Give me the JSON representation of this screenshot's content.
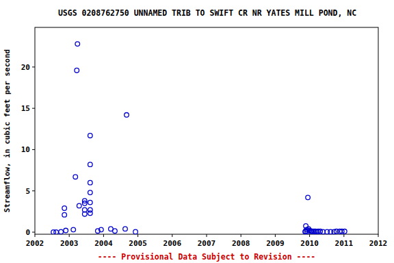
{
  "chart_data": {
    "type": "scatter",
    "title": "USGS 0208762750 UNNAMED TRIB TO SWIFT CR NR YATES MILL POND, NC",
    "y_label": "Streamflow, in cubic feet per second",
    "annotation": "---- Provisional Data Subject to Revision ----",
    "x": [
      2002.54,
      2002.62,
      2002.76,
      2002.86,
      2002.86,
      2002.9,
      2003.12,
      2003.18,
      2003.22,
      2003.24,
      2003.29,
      2003.45,
      2003.45,
      2003.45,
      2003.45,
      2003.61,
      2003.61,
      2003.61,
      2003.61,
      2003.61,
      2003.61,
      2003.61,
      2003.83,
      2003.93,
      2004.21,
      2004.33,
      2004.63,
      2004.67,
      2004.93,
      2009.87,
      2009.88,
      2009.89,
      2009.91,
      2009.93,
      2009.95,
      2009.97,
      2009.99,
      2010.03,
      2010.05,
      2010.09,
      2010.13,
      2010.17,
      2010.21,
      2010.25,
      2010.31,
      2010.39,
      2010.51,
      2010.61,
      2010.71,
      2010.78,
      2010.88,
      2010.94,
      2011.02
    ],
    "values": [
      0,
      0,
      0.05,
      2.9,
      2.1,
      0.2,
      0.3,
      6.7,
      19.6,
      22.8,
      3.2,
      3.8,
      3.5,
      2.7,
      2.2,
      11.7,
      8.2,
      6.0,
      4.8,
      3.6,
      2.7,
      2.3,
      0.15,
      0.3,
      0.4,
      0.15,
      0.4,
      14.2,
      0.05,
      0.05,
      0.1,
      0.75,
      0.3,
      0.05,
      4.2,
      0.4,
      0.2,
      0.15,
      0.1,
      0.1,
      0.1,
      0.1,
      0.05,
      0.1,
      0.1,
      0.05,
      0.05,
      0.05,
      0.05,
      0.1,
      0.1,
      0.1,
      0.1
    ],
    "color": "#0000cc",
    "marker": "circle-open",
    "xlim": [
      2002,
      2012
    ],
    "xticks": [
      2002,
      2003,
      2004,
      2005,
      2006,
      2007,
      2008,
      2009,
      2010,
      2011,
      2012
    ],
    "ylim": [
      -0.25,
      24.8
    ],
    "yticks": [
      0,
      5,
      10,
      15,
      20
    ],
    "grid": false
  }
}
